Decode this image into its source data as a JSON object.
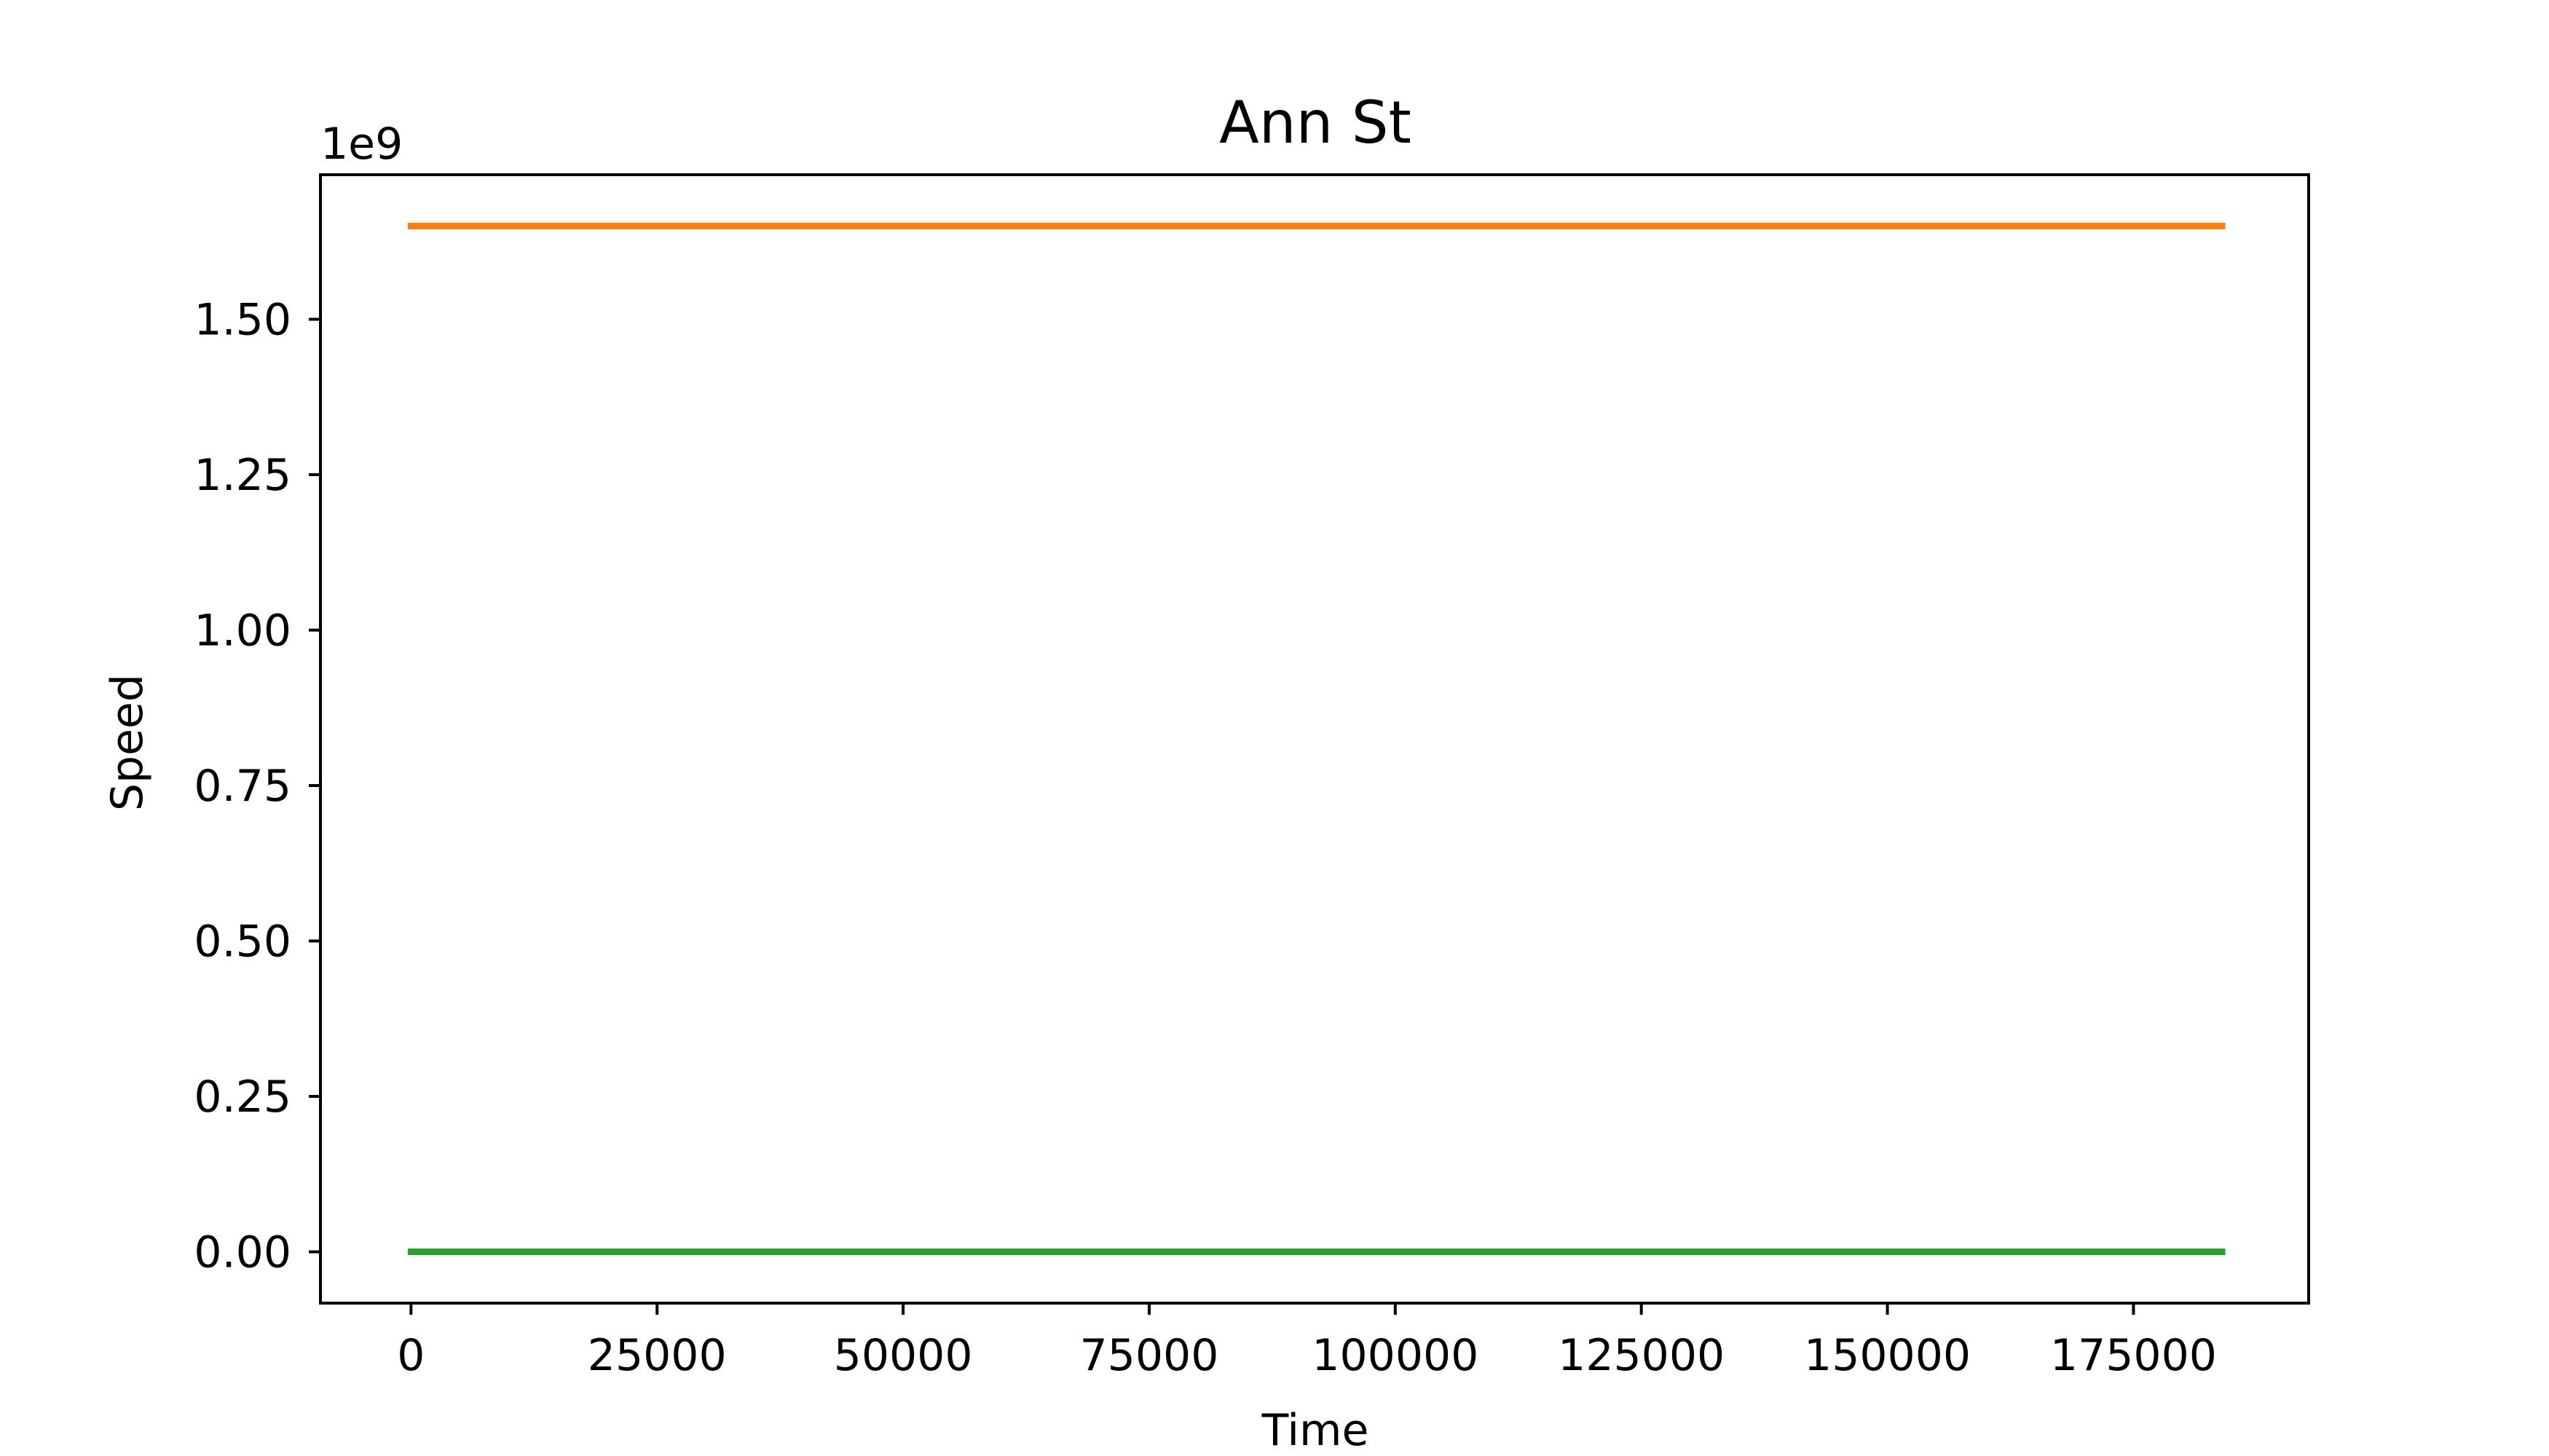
{
  "chart_data": {
    "type": "line",
    "title": "Ann St",
    "xlabel": "Time",
    "ylabel": "Speed",
    "y_offset_label": "1e9",
    "xlim": [
      -9200,
      192800
    ],
    "ylim": [
      -0.0825,
      1.7325
    ],
    "x_ticks": [
      0,
      25000,
      50000,
      75000,
      100000,
      125000,
      150000,
      175000
    ],
    "x_tick_labels": [
      "0",
      "25000",
      "50000",
      "75000",
      "100000",
      "125000",
      "150000",
      "175000"
    ],
    "y_ticks": [
      0,
      0.25,
      0.5,
      0.75,
      1.0,
      1.25,
      1.5
    ],
    "y_tick_labels": [
      "0.00",
      "0.25",
      "0.50",
      "0.75",
      "1.00",
      "1.25",
      "1.50"
    ],
    "grid": false,
    "series": [
      {
        "color": "#ff7f0e",
        "x": [
          0,
          184000
        ],
        "y": [
          1.65,
          1.65
        ]
      },
      {
        "color": "#2ca02c",
        "x": [
          0,
          184000
        ],
        "y": [
          0.0,
          0.0
        ]
      }
    ]
  }
}
